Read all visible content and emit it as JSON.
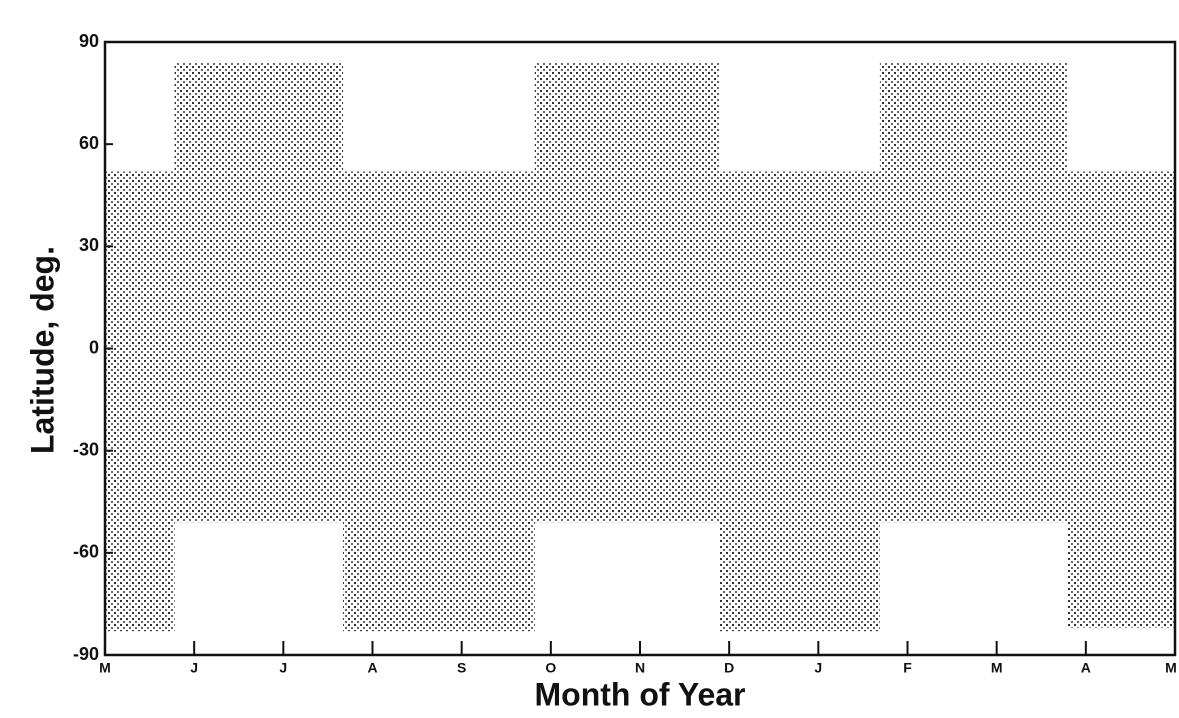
{
  "chart_data": {
    "type": "range",
    "xlabel": "Month of Year",
    "ylabel": "Latitude, deg.",
    "xlim": [
      0,
      12
    ],
    "xticks": [
      {
        "value": 0,
        "label": "M"
      },
      {
        "value": 1,
        "label": "J"
      },
      {
        "value": 2,
        "label": "J"
      },
      {
        "value": 3,
        "label": "A"
      },
      {
        "value": 4,
        "label": "S"
      },
      {
        "value": 5,
        "label": "O"
      },
      {
        "value": 6,
        "label": "N"
      },
      {
        "value": 7,
        "label": "D"
      },
      {
        "value": 8,
        "label": "J"
      },
      {
        "value": 9,
        "label": "F"
      },
      {
        "value": 10,
        "label": "M"
      },
      {
        "value": 11,
        "label": "A"
      },
      {
        "value": 12,
        "label": "M"
      }
    ],
    "ylim": [
      -90,
      90
    ],
    "yticks": [
      -90,
      -60,
      -30,
      0,
      30,
      60,
      90
    ],
    "color": "#333333",
    "bars": [
      {
        "x": [
          0,
          0.78
        ],
        "y": [
          -83,
          52
        ]
      },
      {
        "x": [
          0.78,
          2.67
        ],
        "y": [
          -51,
          84
        ]
      },
      {
        "x": [
          2.67,
          4.82
        ],
        "y": [
          -83,
          52
        ]
      },
      {
        "x": [
          4.82,
          6.89
        ],
        "y": [
          -51,
          84
        ]
      },
      {
        "x": [
          6.89,
          8.69
        ],
        "y": [
          -83,
          52
        ]
      },
      {
        "x": [
          8.69,
          10.8
        ],
        "y": [
          -51,
          84
        ]
      },
      {
        "x": [
          10.8,
          12
        ],
        "y": [
          -82,
          52
        ]
      }
    ]
  }
}
